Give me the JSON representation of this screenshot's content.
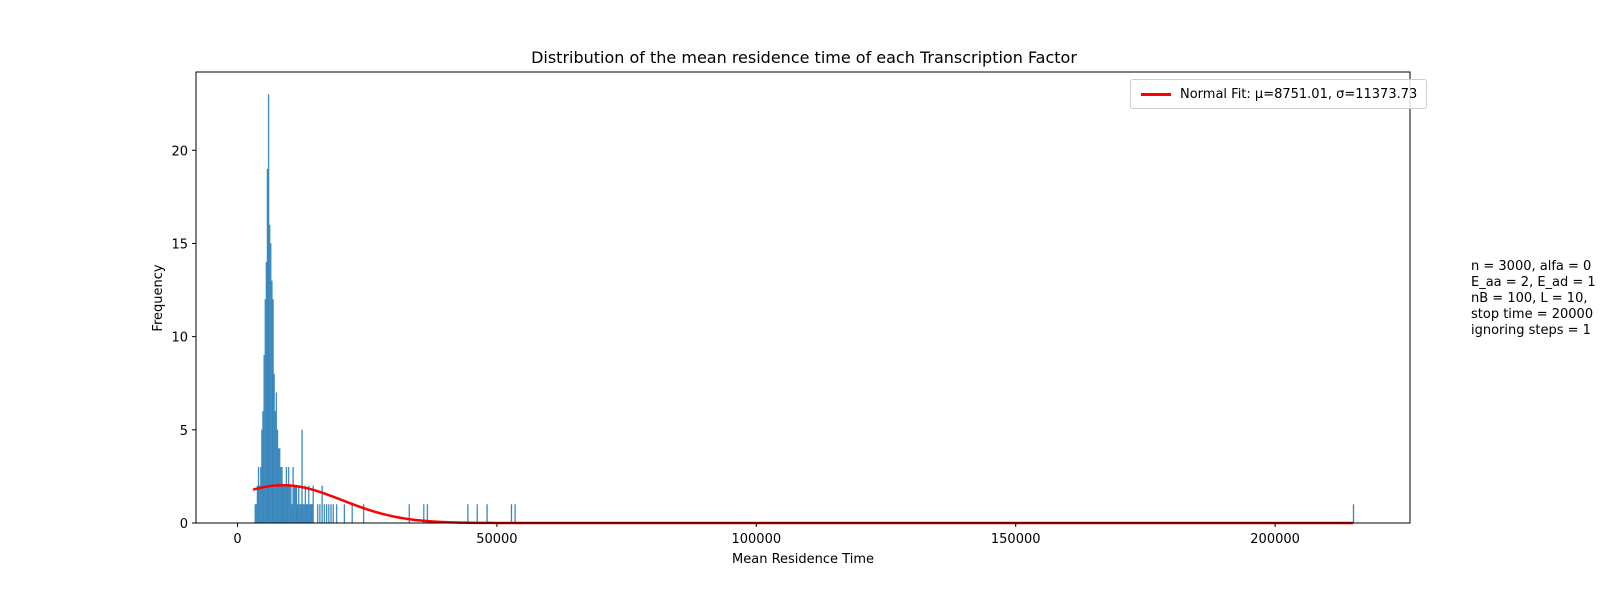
{
  "chart_data": {
    "type": "bar",
    "title": "Distribution of the mean residence time of each Transcription Factor",
    "xlabel": "Mean Residence Time",
    "ylabel": "Frequency",
    "xlim": [
      -8000,
      226000
    ],
    "ylim": [
      0,
      24.2
    ],
    "xticks": [
      0,
      50000,
      100000,
      150000,
      200000
    ],
    "yticks": [
      0,
      5,
      10,
      15,
      20
    ],
    "bar_color": "#1f77b4",
    "bin_width": 215,
    "histogram": {
      "bin_starts": [
        3300,
        3515,
        3730,
        3945,
        4160,
        4375,
        4590,
        4805,
        5020,
        5235,
        5450,
        5665,
        5880,
        6095,
        6310,
        6525,
        6740,
        6955,
        7170,
        7385,
        7600,
        7815,
        8030,
        8245,
        8460,
        8675,
        8890,
        9105,
        9320,
        9535,
        9750,
        9965,
        10180,
        10395,
        10610,
        10825,
        11040,
        11255,
        11470,
        11685,
        11900,
        12115,
        12330,
        12545,
        12760,
        12975,
        13190,
        13405,
        13620,
        13835,
        14050,
        14265,
        14480,
        15340,
        15770,
        16200,
        16630,
        17060,
        17490,
        17920,
        18350,
        19000,
        20500,
        22000,
        24200,
        33000,
        35800,
        36500,
        44300,
        46100,
        48000,
        52700,
        53400,
        215000
      ],
      "counts": [
        1,
        1,
        2,
        3,
        2,
        3,
        5,
        6,
        9,
        12,
        14,
        19,
        23,
        16,
        15,
        13,
        12,
        8,
        6,
        7,
        5,
        4,
        4,
        3,
        3,
        2,
        2,
        2,
        3,
        2,
        3,
        2,
        2,
        1,
        3,
        2,
        2,
        2,
        1,
        2,
        1,
        1,
        5,
        1,
        1,
        2,
        1,
        1,
        2,
        1,
        1,
        1,
        2,
        1,
        1,
        2,
        1,
        1,
        1,
        1,
        1,
        1,
        1,
        1,
        1,
        1,
        1,
        1,
        1,
        1,
        1,
        1,
        1,
        1
      ]
    },
    "series": [
      {
        "name": "Normal Fit: μ=8751.01, σ=11373.73",
        "type": "line",
        "color": "#ff0000",
        "mu": 8751.01,
        "sigma": 11373.73,
        "x_range": [
          3000,
          215000
        ]
      }
    ],
    "legend": {
      "label": "Normal Fit: μ=8751.01, σ=11373.73",
      "position": "top-right"
    },
    "annotation": [
      "n = 3000, alfa = 0",
      "E_aa = 2, E_ad = 1",
      "nB = 100, L = 10,",
      "stop time = 20000",
      "ignoring steps = 1"
    ]
  }
}
